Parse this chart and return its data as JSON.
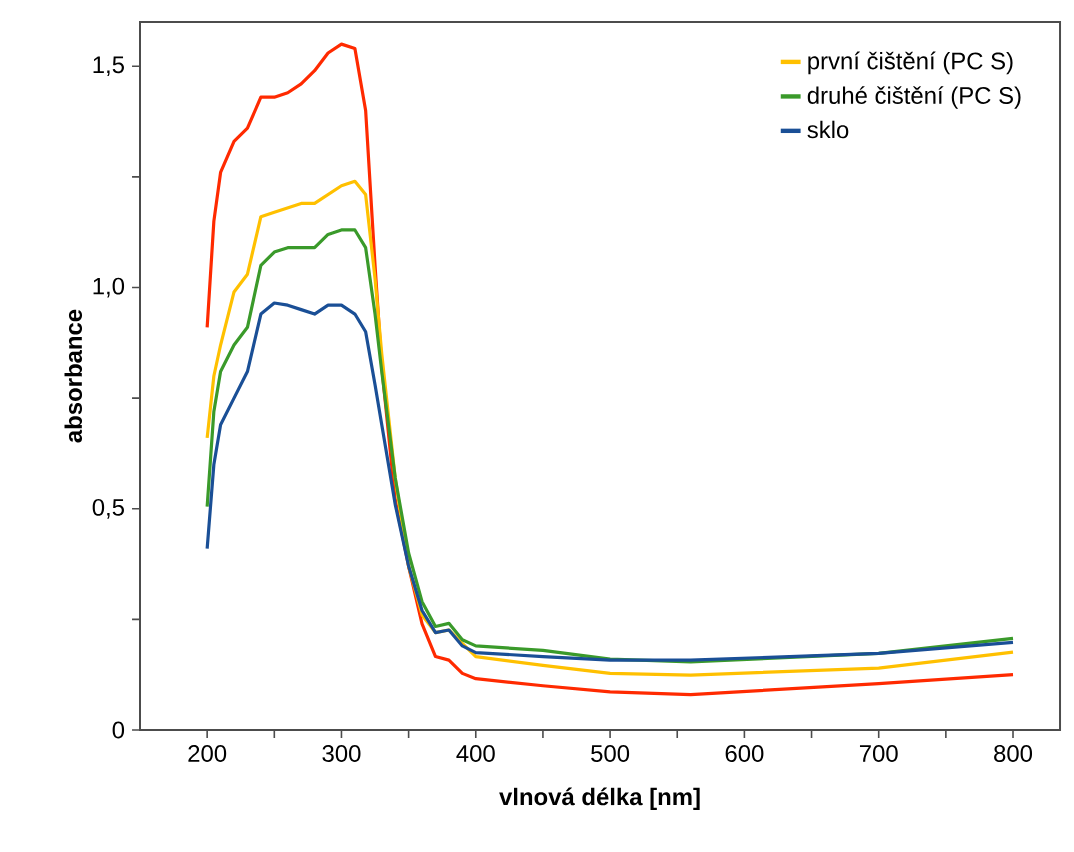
{
  "chart_data": {
    "type": "line",
    "xlabel": "vlnová délka [nm]",
    "ylabel": "absorbance",
    "xlim": [
      150,
      835
    ],
    "ylim": [
      0,
      1.6
    ],
    "xticks": [
      200,
      {
        "value": 250,
        "label": null
      },
      300,
      {
        "value": 350,
        "label": null
      },
      400,
      {
        "value": 450,
        "label": null
      },
      500,
      {
        "value": 550,
        "label": null
      },
      600,
      {
        "value": 650,
        "label": null
      },
      700,
      {
        "value": 750,
        "label": null
      },
      800
    ],
    "yticks": [
      {
        "value": 0,
        "label": "0"
      },
      {
        "value": 0.25,
        "label": null
      },
      {
        "value": 0.5,
        "label": "0,5"
      },
      {
        "value": 0.75,
        "label": null
      },
      {
        "value": 1.0,
        "label": "1,0"
      },
      {
        "value": 1.25,
        "label": null
      },
      {
        "value": 1.5,
        "label": "1,5"
      }
    ],
    "x": [
      200,
      205,
      210,
      220,
      230,
      240,
      250,
      260,
      270,
      280,
      290,
      300,
      310,
      318,
      325,
      330,
      340,
      350,
      360,
      370,
      380,
      390,
      400,
      450,
      500,
      560,
      700,
      800
    ],
    "series": [
      {
        "color": "#ff2a00",
        "values": [
          0.91,
          1.15,
          1.26,
          1.33,
          1.36,
          1.43,
          1.43,
          1.44,
          1.46,
          1.49,
          1.53,
          1.55,
          1.54,
          1.4,
          1.05,
          0.82,
          0.52,
          0.37,
          0.24,
          0.166,
          0.158,
          0.128,
          0.116,
          0.1,
          0.086,
          0.08,
          0.105,
          0.125
        ]
      },
      {
        "name": "první čištění (PC S)",
        "color": "#ffc000",
        "values": [
          0.66,
          0.8,
          0.87,
          0.99,
          1.03,
          1.16,
          1.17,
          1.18,
          1.19,
          1.19,
          1.21,
          1.23,
          1.24,
          1.21,
          1.02,
          0.85,
          0.57,
          0.37,
          0.26,
          0.22,
          0.226,
          0.196,
          0.166,
          0.146,
          0.128,
          0.124,
          0.14,
          0.176
        ]
      },
      {
        "name": "druhé čištění (PC S)",
        "color": "#3a9a2a",
        "values": [
          0.505,
          0.72,
          0.81,
          0.87,
          0.91,
          1.05,
          1.08,
          1.09,
          1.09,
          1.09,
          1.12,
          1.13,
          1.13,
          1.09,
          0.94,
          0.81,
          0.57,
          0.4,
          0.29,
          0.234,
          0.241,
          0.204,
          0.19,
          0.18,
          0.16,
          0.154,
          0.173,
          0.207
        ]
      },
      {
        "name": "sklo",
        "color": "#1a4f96",
        "values": [
          0.41,
          0.6,
          0.69,
          0.75,
          0.81,
          0.94,
          0.965,
          0.96,
          0.95,
          0.94,
          0.96,
          0.96,
          0.94,
          0.9,
          0.78,
          0.69,
          0.51,
          0.37,
          0.27,
          0.22,
          0.226,
          0.19,
          0.175,
          0.166,
          0.158,
          0.158,
          0.173,
          0.198
        ]
      }
    ],
    "legend": "top right",
    "grid": false,
    "marker": "none",
    "line_style": "solid"
  }
}
